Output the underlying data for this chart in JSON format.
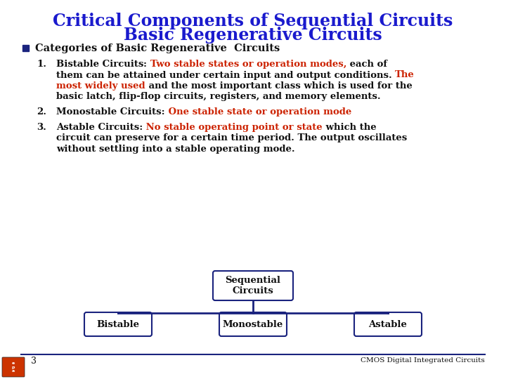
{
  "title_line1": "Critical Components of Sequential Circuits",
  "title_line2": "Basic Regenerative Circuits",
  "title_color": "#1a1acd",
  "title_fontsize": 17,
  "bg_color": "#ffffff",
  "bullet_text": "Categories of Basic Regenerative  Circuits",
  "dark_navy": "#1a237e",
  "red_color": "#cc2200",
  "black_color": "#111111",
  "footer_num": "3",
  "footer_right": "CMOS Digital Integrated Circuits",
  "fs_body": 9.5,
  "fs_bullet": 10.5
}
